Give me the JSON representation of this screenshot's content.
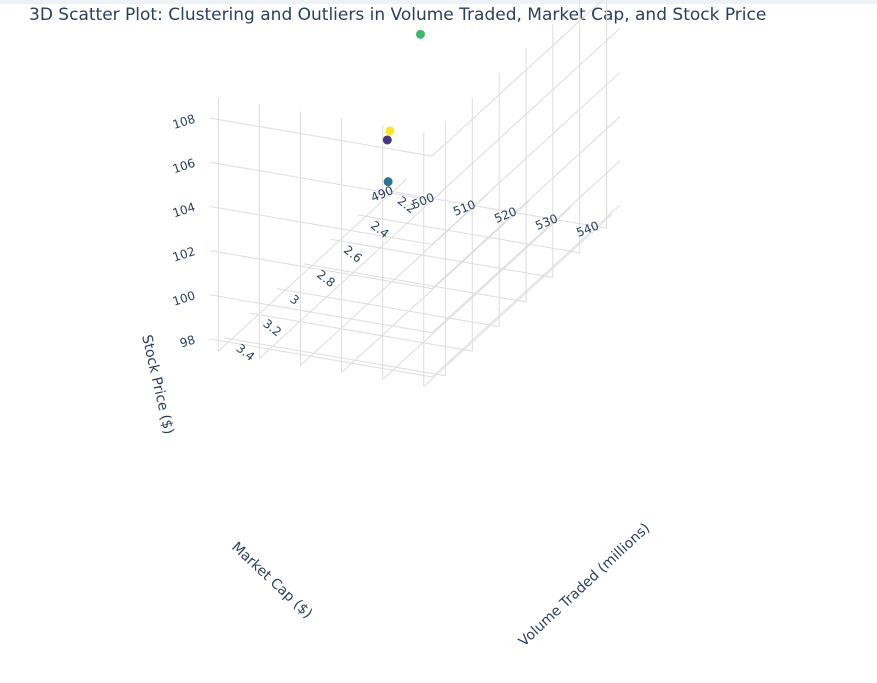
{
  "chart_data": {
    "type": "scatter3d",
    "title": "3D Scatter Plot: Clustering and Outliers in Volume Traded, Market Cap, and Stock Price",
    "xlabel": "Volume Traded (millions)",
    "ylabel": "Market Cap ($)",
    "zlabel": "Stock Price ($)",
    "xlim": [
      2.1,
      3.5
    ],
    "ylim": [
      488,
      542
    ],
    "zlim": [
      97.5,
      109
    ],
    "x_ticks": [
      "2.2",
      "2.4",
      "2.6",
      "2.8",
      "3",
      "3.2",
      "3.4"
    ],
    "y_ticks": [
      "490",
      "500",
      "510",
      "520",
      "530",
      "540"
    ],
    "z_ticks": [
      "98",
      "100",
      "102",
      "104",
      "106",
      "108"
    ],
    "colorscale": "viridis",
    "points": [
      {
        "x": 2.3,
        "y": 500,
        "z": 105.5,
        "color": "#3bba6d"
      },
      {
        "x": 3.0,
        "y": 515,
        "z": 103.2,
        "color": "#2a788e"
      },
      {
        "x": 2.7,
        "y": 505,
        "z": 103.1,
        "color": "#453781"
      },
      {
        "x": 2.65,
        "y": 504,
        "z": 103.2,
        "color": "#fde725"
      }
    ]
  }
}
